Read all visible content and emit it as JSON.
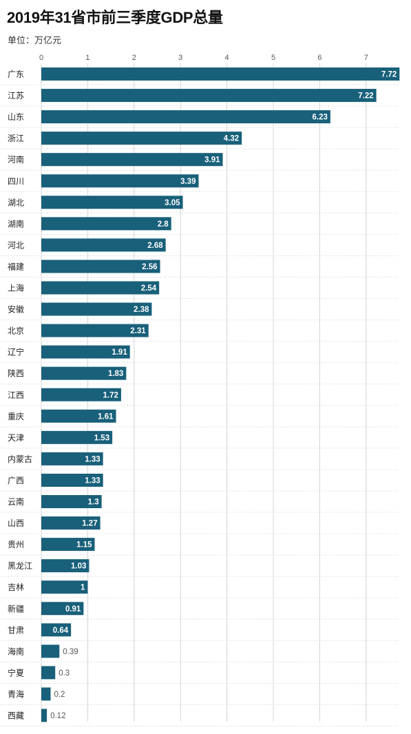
{
  "header": {
    "title": "2019年31省市前三季度GDP总量",
    "unit_label": "单位：万亿元"
  },
  "colors": {
    "bar": "#19607a",
    "grid": "#d4d4d4",
    "separator": "#e0e0e0"
  },
  "chart_data": {
    "type": "bar",
    "orientation": "horizontal",
    "title": "2019年31省市前三季度GDP总量",
    "unit": "万亿元",
    "xlim": [
      0,
      7.7
    ],
    "ticks": [
      0,
      1,
      2,
      3,
      4,
      5,
      6,
      7
    ],
    "tick_position": "top",
    "grid": true,
    "categories": [
      "广东",
      "江苏",
      "山东",
      "浙江",
      "河南",
      "四川",
      "湖北",
      "湖南",
      "河北",
      "福建",
      "上海",
      "安徽",
      "北京",
      "辽宁",
      "陕西",
      "江西",
      "重庆",
      "天津",
      "内蒙古",
      "广西",
      "云南",
      "山西",
      "贵州",
      "黑龙江",
      "吉林",
      "新疆",
      "甘肃",
      "海南",
      "宁夏",
      "青海",
      "西藏"
    ],
    "values": [
      7.72,
      7.22,
      6.23,
      4.32,
      3.91,
      3.39,
      3.05,
      2.8,
      2.68,
      2.56,
      2.54,
      2.38,
      2.31,
      1.91,
      1.83,
      1.72,
      1.61,
      1.53,
      1.33,
      1.33,
      1.3,
      1.27,
      1.15,
      1.03,
      1,
      0.91,
      0.64,
      0.39,
      0.3,
      0.2,
      0.12
    ],
    "value_labels": [
      "7.72",
      "7.22",
      "6.23",
      "4.32",
      "3.91",
      "3.39",
      "3.05",
      "2.8",
      "2.68",
      "2.56",
      "2.54",
      "2.38",
      "2.31",
      "1.91",
      "1.83",
      "1.72",
      "1.61",
      "1.53",
      "1.33",
      "1.33",
      "1.3",
      "1.27",
      "1.15",
      "1.03",
      "1",
      "0.91",
      "0.64",
      "0.39",
      "0.3",
      "0.2",
      "0.12"
    ]
  }
}
